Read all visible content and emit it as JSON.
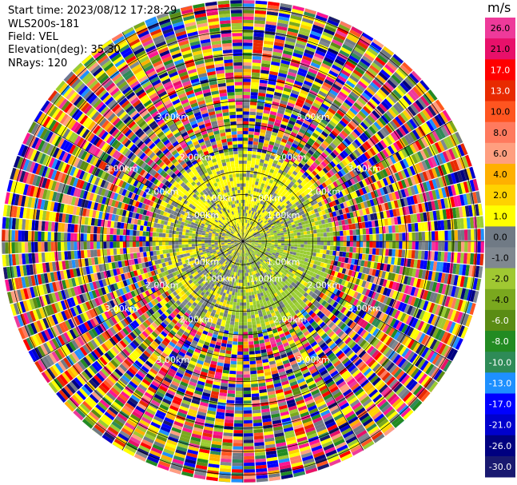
{
  "header": {
    "start_time": "Start time: 2023/08/12 17:28:29",
    "instrument": "WLS200s-181",
    "field": "Field: VEL",
    "elevation": "Elevation(deg): 35.30",
    "nrays": "NRays: 120"
  },
  "chart_data": {
    "type": "heatmap",
    "projection": "polar-ppi",
    "field": "VEL",
    "units": "m/s",
    "nrays": 120,
    "elevation_deg": 35.3,
    "range_rings_km": [
      1.0,
      2.0,
      3.0
    ],
    "range_ring_labels": [
      "1.00km",
      "2.00km",
      "3.00km"
    ],
    "colorbar": {
      "ticks": [
        "26.0",
        "21.0",
        "17.0",
        "13.0",
        "10.0",
        "8.0",
        "6.0",
        "4.0",
        "2.0",
        "1.0",
        "0.0",
        "-1.0",
        "-2.0",
        "-4.0",
        "-6.0",
        "-8.0",
        "-10.0",
        "-13.0",
        "-17.0",
        "-21.0",
        "-26.0",
        "-30.0"
      ],
      "colors": [
        "#ee3a9a",
        "#e8106a",
        "#ff0000",
        "#e82a00",
        "#ff5520",
        "#ff7a5e",
        "#ff9f80",
        "#ffb000",
        "#ffd200",
        "#ffff00",
        "#707a85",
        "#808890",
        "#a0c832",
        "#7aa81e",
        "#5a8c14",
        "#228b22",
        "#2e8b57",
        "#1e90ff",
        "#0000ff",
        "#0000cd",
        "#000080",
        "#191970"
      ]
    },
    "regions": [
      {
        "description_key": "inner",
        "max_km": 1.9,
        "dominant": [
          "#707a85",
          "#ffff00",
          "#9acd32"
        ]
      },
      {
        "description_key": "outer",
        "min_km": 1.9,
        "dominant": "all"
      }
    ]
  },
  "colors": {
    "grid": "#000000",
    "background": "#ffffff"
  }
}
